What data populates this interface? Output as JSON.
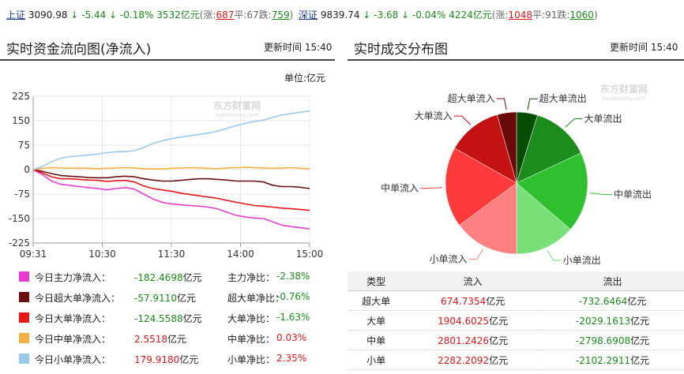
{
  "ticker": {
    "sh": {
      "name": "上证",
      "price": "3090.98",
      "change": "↓ -5.44",
      "pct": "↓ -0.18%",
      "amount": "3532亿元",
      "open_paren": "(涨:",
      "up": "687",
      "flat": "平:67",
      "down_label": "跌:",
      "down": "759",
      "close_paren": ")"
    },
    "sz": {
      "name": "深证",
      "price": "9839.74",
      "change": "↓ -3.68",
      "pct": "↓ -0.04%",
      "amount": "4224亿元",
      "open_paren": "(涨:",
      "up": "1048",
      "flat": "平:91",
      "down_label": "跌:",
      "down": "1060",
      "close_paren": ")"
    }
  },
  "left_panel": {
    "title": "实时资金流向图(净流入)",
    "update_label": "更新时间",
    "update_time": "15:40",
    "unit": "单位:亿元"
  },
  "right_panel": {
    "title": "实时成交分布图",
    "update_label": "更新时间",
    "update_time": "15:40"
  },
  "colors": {
    "main": "#e83ccf",
    "super": "#6b0f0f",
    "large": "#e8161b",
    "medium": "#f5b042",
    "small": "#9ccaea",
    "up": "#e0161b",
    "down": "#1a8c1a"
  },
  "chart_data": [
    {
      "type": "line",
      "x_ticks": [
        "09:31",
        "10:30",
        "11:30",
        "14:00",
        "15:00"
      ],
      "y_ticks": [
        "225",
        "150",
        "75",
        "0",
        "-75",
        "-150",
        "-225"
      ],
      "ylim": [
        -225,
        225
      ],
      "watermark": "东方财富网",
      "watermark_sub": "eastmoney.com",
      "series": [
        {
          "name": "今日主力净流入",
          "color": "#e83ccf",
          "values": [
            0,
            -15,
            -35,
            -45,
            -48,
            -52,
            -55,
            -58,
            -62,
            -58,
            -55,
            -60,
            -75,
            -90,
            -100,
            -105,
            -108,
            -110,
            -112,
            -115,
            -120,
            -130,
            -140,
            -145,
            -148,
            -150,
            -160,
            -170,
            -175,
            -178,
            -182
          ]
        },
        {
          "name": "今日超大单净流入",
          "color": "#6b0f0f",
          "values": [
            0,
            -5,
            -12,
            -18,
            -20,
            -22,
            -24,
            -25,
            -25,
            -22,
            -20,
            -22,
            -28,
            -32,
            -35,
            -35,
            -33,
            -30,
            -28,
            -28,
            -30,
            -32,
            -35,
            -35,
            -35,
            -38,
            -48,
            -52,
            -52,
            -54,
            -58
          ]
        },
        {
          "name": "今日大单净流入",
          "color": "#e8161b",
          "values": [
            0,
            -10,
            -22,
            -28,
            -28,
            -30,
            -32,
            -33,
            -36,
            -34,
            -33,
            -38,
            -50,
            -58,
            -62,
            -66,
            -72,
            -76,
            -80,
            -84,
            -88,
            -94,
            -100,
            -105,
            -110,
            -112,
            -115,
            -118,
            -120,
            -122,
            -125
          ]
        },
        {
          "name": "今日中单净流入",
          "color": "#f5b042",
          "values": [
            0,
            4,
            6,
            5,
            4,
            5,
            4,
            3,
            4,
            5,
            6,
            5,
            3,
            3,
            2,
            4,
            5,
            6,
            5,
            4,
            3,
            5,
            6,
            7,
            6,
            5,
            4,
            5,
            6,
            4,
            3
          ]
        },
        {
          "name": "今日小单净流入",
          "color": "#9ccaea",
          "values": [
            0,
            10,
            25,
            35,
            40,
            42,
            45,
            48,
            52,
            55,
            56,
            58,
            68,
            80,
            88,
            95,
            100,
            104,
            108,
            112,
            118,
            126,
            135,
            142,
            148,
            152,
            160,
            168,
            172,
            176,
            180
          ]
        }
      ]
    },
    {
      "type": "pie",
      "labels": [
        "超大单流出",
        "大单流出",
        "中单流出",
        "小单流出",
        "小单流入",
        "中单流入",
        "大单流入",
        "超大单流入"
      ],
      "values": [
        732.6464,
        2029.1613,
        2798.6908,
        2102.2911,
        2282.2092,
        2801.2426,
        1904.6025,
        674.7354
      ],
      "colors": [
        "#064d06",
        "#1c8c1c",
        "#2fbf2f",
        "#79e079",
        "#ff8080",
        "#ff3a3a",
        "#c41212",
        "#6b0a0a"
      ],
      "watermark": "东方财富网",
      "watermark_sub": "eastmoney.com"
    }
  ],
  "legend": [
    {
      "name": "今日主力净流入：",
      "value": "-182.4698",
      "unit": "亿元",
      "ratio_label": "主力净比：",
      "ratio": "-2.38%",
      "color": "#e83ccf",
      "sign": "down",
      "ratio_sign": "down"
    },
    {
      "name": "今日超大单净流入：",
      "value": "-57.9110",
      "unit": "亿元",
      "ratio_label": "超大单净比：",
      "ratio": "-0.76%",
      "color": "#6b0f0f",
      "sign": "down",
      "ratio_sign": "down"
    },
    {
      "name": "今日大单净流入：",
      "value": "-124.5588",
      "unit": "亿元",
      "ratio_label": "大单净比：",
      "ratio": "-1.63%",
      "color": "#e8161b",
      "sign": "down",
      "ratio_sign": "down"
    },
    {
      "name": "今日中单净流入：",
      "value": "2.5518",
      "unit": "亿元",
      "ratio_label": "中单净比：",
      "ratio": "0.03%",
      "color": "#f5b042",
      "sign": "up",
      "ratio_sign": "up"
    },
    {
      "name": "今日小单净流入：",
      "value": "179.9180",
      "unit": "亿元",
      "ratio_label": "小单净比：",
      "ratio": "2.35%",
      "color": "#9ccaea",
      "sign": "up",
      "ratio_sign": "up"
    }
  ],
  "table": {
    "headers": [
      "类型",
      "流入",
      "流出"
    ],
    "rows": [
      {
        "type": "超大单",
        "inflow": "674.7354",
        "inflow_unit": "亿元",
        "outflow": "-732.6464",
        "outflow_unit": "亿元"
      },
      {
        "type": "大单",
        "inflow": "1904.6025",
        "inflow_unit": "亿元",
        "outflow": "-2029.1613",
        "outflow_unit": "亿元"
      },
      {
        "type": "中单",
        "inflow": "2801.2426",
        "inflow_unit": "亿元",
        "outflow": "-2798.6908",
        "outflow_unit": "亿元"
      },
      {
        "type": "小单",
        "inflow": "2282.2092",
        "inflow_unit": "亿元",
        "outflow": "-2102.2911",
        "outflow_unit": "亿元"
      }
    ]
  }
}
